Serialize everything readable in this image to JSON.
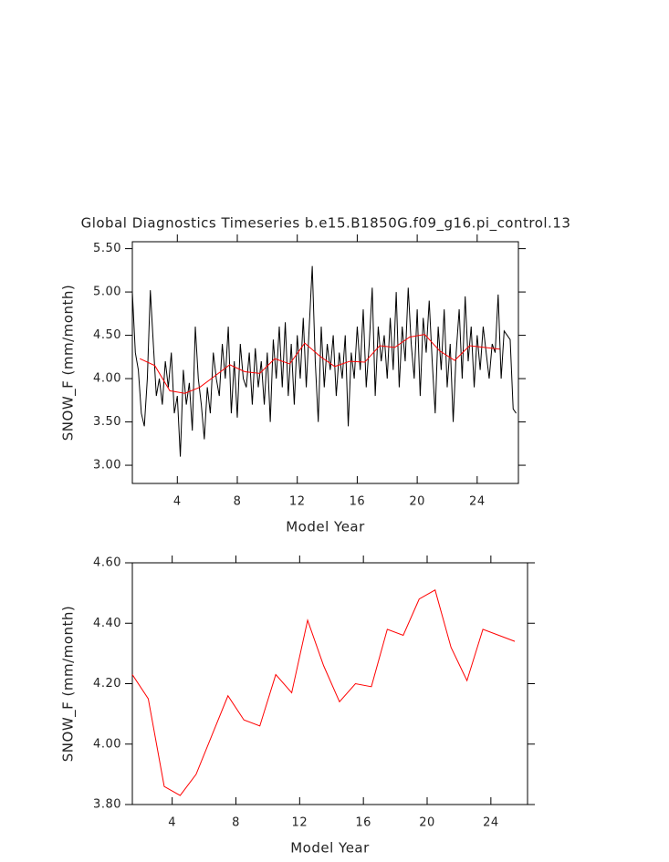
{
  "chart_data": [
    {
      "type": "line",
      "title": "Global Diagnostics Timeseries b.e15.B1850G.f09_g16.pi_control.13",
      "xlabel": "Model Year",
      "ylabel": "SNOW_F (mm/month)",
      "xlim": [
        1,
        26.75
      ],
      "xticks": [
        4,
        8,
        12,
        16,
        20,
        24
      ],
      "ylim": [
        2.79,
        5.58
      ],
      "yticks": [
        {
          "value": 3,
          "label": "3.00"
        },
        {
          "value": 3.5,
          "label": "3.50"
        },
        {
          "value": 4,
          "label": "4.00"
        },
        {
          "value": 4.5,
          "label": "4.50"
        },
        {
          "value": 5,
          "label": "5.00"
        },
        {
          "value": 5.5,
          "label": "5.50"
        }
      ],
      "series": [
        {
          "color": "#000000",
          "x": [
            1,
            1.2,
            1.4,
            1.6,
            1.8,
            2,
            2.2,
            2.4,
            2.6,
            2.8,
            3,
            3.2,
            3.4,
            3.6,
            3.8,
            4,
            4.2,
            4.4,
            4.6,
            4.8,
            5,
            5.2,
            5.4,
            5.6,
            5.8,
            6,
            6.2,
            6.4,
            6.6,
            6.8,
            7,
            7.2,
            7.4,
            7.6,
            7.8,
            8,
            8.2,
            8.4,
            8.6,
            8.8,
            9,
            9.2,
            9.4,
            9.6,
            9.8,
            10,
            10.2,
            10.4,
            10.6,
            10.8,
            11,
            11.2,
            11.4,
            11.6,
            11.8,
            12,
            12.2,
            12.4,
            12.6,
            12.8,
            13,
            13.2,
            13.4,
            13.6,
            13.8,
            14,
            14.2,
            14.4,
            14.6,
            14.8,
            15,
            15.2,
            15.4,
            15.6,
            15.8,
            16,
            16.2,
            16.4,
            16.6,
            16.8,
            17,
            17.2,
            17.4,
            17.6,
            17.8,
            18,
            18.2,
            18.4,
            18.6,
            18.8,
            19,
            19.2,
            19.4,
            19.6,
            19.8,
            20,
            20.2,
            20.4,
            20.6,
            20.8,
            21,
            21.2,
            21.4,
            21.6,
            21.8,
            22,
            22.2,
            22.4,
            22.6,
            22.8,
            23,
            23.2,
            23.4,
            23.6,
            23.8,
            24,
            24.2,
            24.4,
            24.6,
            24.8,
            25,
            25.2,
            25.4,
            25.6,
            25.8,
            26,
            26.2,
            26.4,
            26.6
          ],
          "values": [
            5.0,
            4.3,
            4.1,
            3.6,
            3.45,
            4.0,
            5.02,
            4.4,
            3.8,
            4.0,
            3.7,
            4.2,
            3.9,
            4.3,
            3.6,
            3.8,
            3.1,
            4.1,
            3.7,
            3.95,
            3.4,
            4.6,
            4.0,
            3.7,
            3.3,
            3.9,
            3.6,
            4.3,
            4.0,
            3.8,
            4.4,
            4.0,
            4.6,
            3.6,
            4.2,
            3.55,
            4.4,
            4.0,
            3.9,
            4.3,
            3.7,
            4.35,
            3.9,
            4.2,
            3.7,
            4.3,
            3.5,
            4.45,
            4.0,
            4.6,
            3.9,
            4.65,
            3.8,
            4.4,
            3.7,
            4.5,
            4.0,
            4.7,
            3.9,
            4.6,
            5.3,
            4.2,
            3.5,
            4.6,
            3.9,
            4.4,
            4.1,
            4.5,
            3.8,
            4.3,
            4.0,
            4.5,
            3.45,
            4.3,
            4.0,
            4.6,
            4.1,
            4.8,
            3.9,
            4.4,
            5.05,
            3.8,
            4.6,
            4.2,
            4.5,
            4.0,
            4.7,
            4.1,
            5.0,
            3.9,
            4.6,
            4.2,
            5.05,
            4.4,
            4.0,
            4.8,
            3.8,
            4.7,
            4.3,
            4.9,
            4.2,
            3.6,
            4.6,
            4.1,
            4.8,
            3.9,
            4.4,
            3.5,
            4.3,
            4.8,
            4.0,
            4.95,
            4.2,
            4.6,
            3.9,
            4.5,
            4.1,
            4.6,
            4.3,
            4.0,
            4.4,
            4.3,
            4.97,
            4.0,
            4.55,
            4.5,
            4.45,
            3.65,
            3.6
          ]
        },
        {
          "color": "#ff0000",
          "x": [
            1.5,
            2.5,
            3.5,
            4.5,
            5.5,
            6.5,
            7.5,
            8.5,
            9.5,
            10.5,
            11.5,
            12.5,
            13.5,
            14.5,
            15.5,
            16.5,
            17.5,
            18.5,
            19.5,
            20.5,
            21.5,
            22.5,
            23.5,
            24.5,
            25.5
          ],
          "values": [
            4.23,
            4.15,
            3.86,
            3.83,
            3.9,
            4.03,
            4.16,
            4.08,
            4.06,
            4.23,
            4.17,
            4.41,
            4.26,
            4.14,
            4.2,
            4.19,
            4.38,
            4.36,
            4.48,
            4.51,
            4.32,
            4.21,
            4.38,
            4.36,
            4.34
          ]
        }
      ]
    },
    {
      "type": "line",
      "xlabel": "Model Year",
      "ylabel": "SNOW_F (mm/month)",
      "xlim": [
        1.5,
        26.3
      ],
      "xticks": [
        4,
        8,
        12,
        16,
        20,
        24
      ],
      "ylim": [
        3.8,
        4.6
      ],
      "yticks": [
        {
          "value": 3.8,
          "label": "3.80"
        },
        {
          "value": 4,
          "label": "4.00"
        },
        {
          "value": 4.2,
          "label": "4.20"
        },
        {
          "value": 4.4,
          "label": "4.40"
        },
        {
          "value": 4.6,
          "label": "4.60"
        }
      ],
      "series": [
        {
          "color": "#ff0000",
          "x": [
            1.5,
            2.5,
            3.5,
            4.5,
            5.5,
            6.5,
            7.5,
            8.5,
            9.5,
            10.5,
            11.5,
            12.5,
            13.5,
            14.5,
            15.5,
            16.5,
            17.5,
            18.5,
            19.5,
            20.5,
            21.5,
            22.5,
            23.5,
            24.5,
            25.5
          ],
          "values": [
            4.23,
            4.15,
            3.86,
            3.83,
            3.9,
            4.03,
            4.16,
            4.08,
            4.06,
            4.23,
            4.17,
            4.41,
            4.26,
            4.14,
            4.2,
            4.19,
            4.38,
            4.36,
            4.48,
            4.51,
            4.32,
            4.21,
            4.38,
            4.36,
            4.34
          ]
        }
      ]
    }
  ]
}
